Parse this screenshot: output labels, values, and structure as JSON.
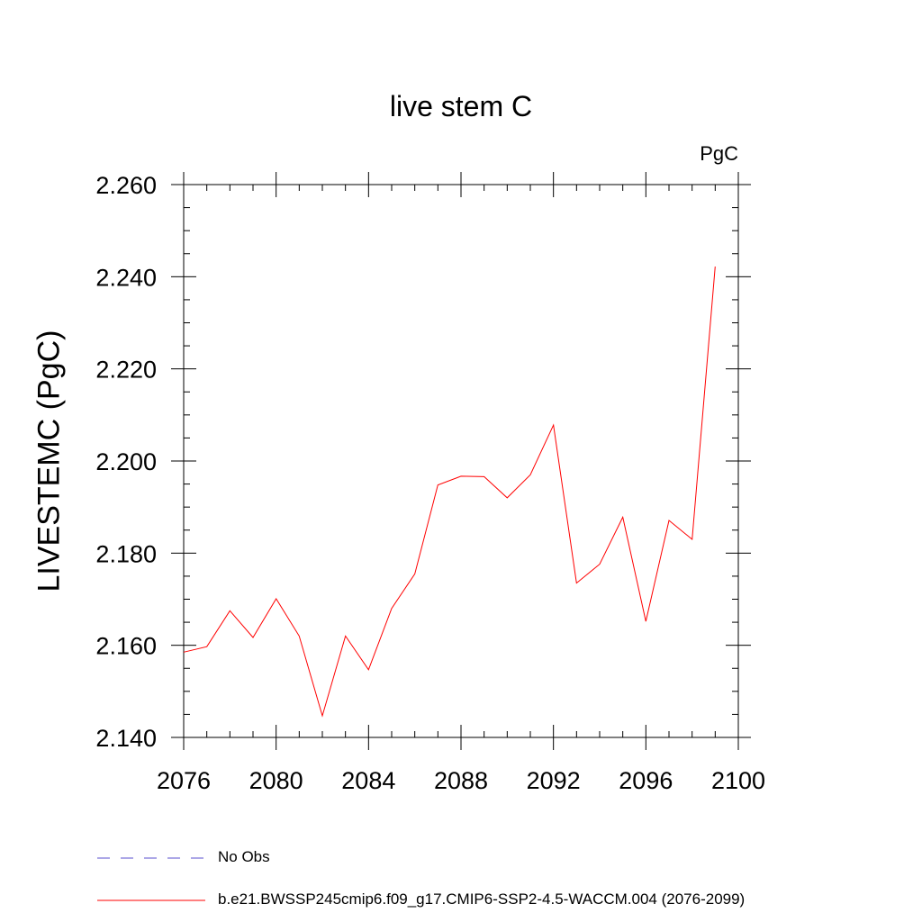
{
  "chart_data": {
    "type": "line",
    "title": "live stem C",
    "units": "PgC",
    "ylabel": "LIVESTEMC  (PgC)",
    "xlabel": "",
    "xlim": [
      2076,
      2100
    ],
    "ylim": [
      2.14,
      2.26
    ],
    "xticks": [
      "2076",
      "2080",
      "2084",
      "2088",
      "2092",
      "2096",
      "2100"
    ],
    "yticks": [
      "2.140",
      "2.160",
      "2.180",
      "2.200",
      "2.220",
      "2.240",
      "2.260"
    ],
    "grid": false,
    "legend_position": "bottom",
    "series": [
      {
        "name": "b.e21.BWSSP245cmip6.f09_g17.CMIP6-SSP2-4.5-WACCM.004 (2076-2099)",
        "color": "#ff0000",
        "style": "solid",
        "x": [
          2076,
          2077,
          2078,
          2079,
          2080,
          2081,
          2082,
          2083,
          2084,
          2085,
          2086,
          2087,
          2088,
          2089,
          2090,
          2091,
          2092,
          2093,
          2094,
          2095,
          2096,
          2097,
          2098,
          2099
        ],
        "y": [
          2.1585,
          2.1597,
          2.1675,
          2.1617,
          2.1701,
          2.162,
          2.1447,
          2.162,
          2.1547,
          2.168,
          2.1755,
          2.1948,
          2.1967,
          2.1966,
          2.192,
          2.197,
          2.2078,
          2.1735,
          2.1776,
          2.1878,
          2.1652,
          2.1871,
          2.183,
          2.2422
        ]
      }
    ],
    "legend": [
      {
        "label": "No Obs",
        "color": "#5a4fcf",
        "style": "dashed"
      },
      {
        "label": "b.e21.BWSSP245cmip6.f09_g17.CMIP6-SSP2-4.5-WACCM.004 (2076-2099)",
        "color": "#ff0000",
        "style": "solid"
      }
    ]
  }
}
